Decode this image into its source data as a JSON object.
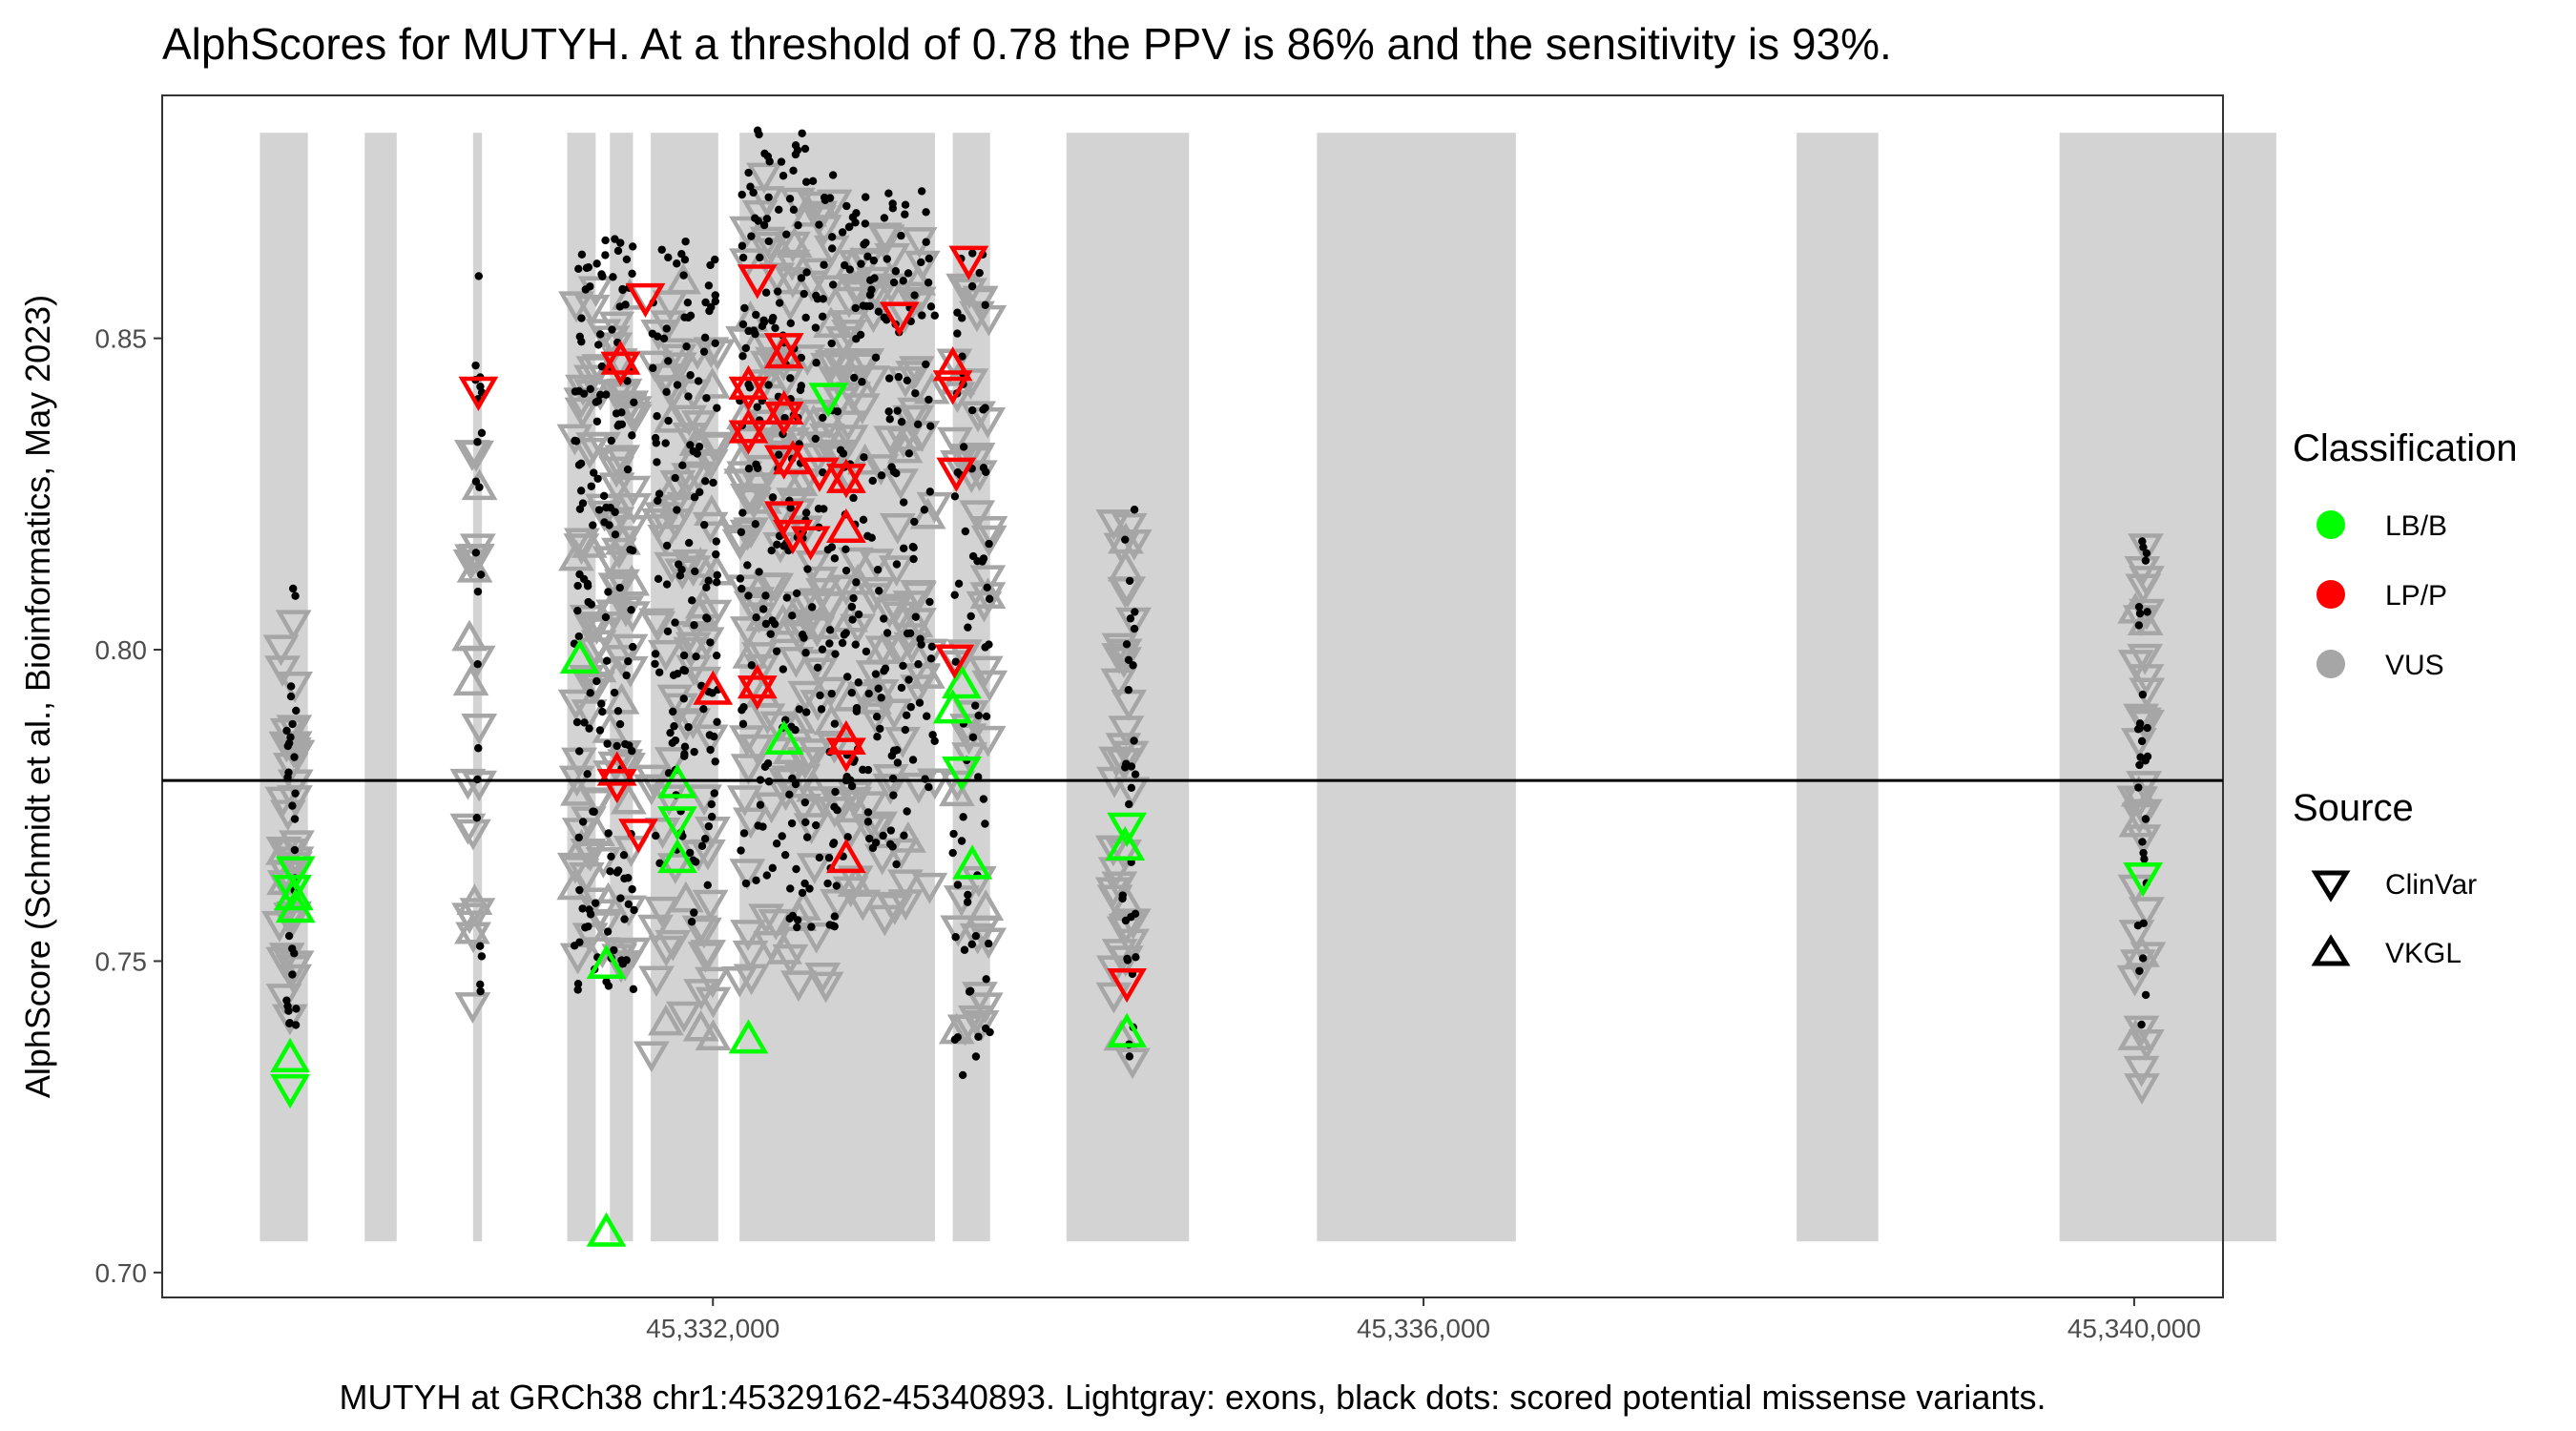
{
  "chart_data": {
    "type": "scatter",
    "title": "AlphScores for MUTYH. At a threshold of 0.78 the PPV is 86% and the sensitivity is 93%.",
    "xlabel": "MUTYH at GRCh38 chr1:45329162-45340893. Lightgray: exons, black dots: scored potential missense variants.",
    "ylabel": "AlphScore (Schmidt et al.,  Bioinformatics, May 2023)",
    "xlim": [
      28900,
      40500
    ],
    "ylim": [
      0.696,
      0.889
    ],
    "x_ticks": [
      {
        "value": 32000,
        "label": "45,332,000"
      },
      {
        "value": 36000,
        "label": "45,336,000"
      },
      {
        "value": 40000,
        "label": "45,340,000"
      }
    ],
    "y_ticks": [
      {
        "value": 0.7,
        "label": "0.70"
      },
      {
        "value": 0.75,
        "label": "0.75"
      },
      {
        "value": 0.8,
        "label": "0.80"
      },
      {
        "value": 0.85,
        "label": "0.85"
      }
    ],
    "threshold": 0.779,
    "grid": false,
    "exons": [
      [
        29450,
        29720
      ],
      [
        30040,
        30220
      ],
      [
        30650,
        30700
      ],
      [
        31180,
        31340
      ],
      [
        31420,
        31550
      ],
      [
        31650,
        32030
      ],
      [
        32150,
        33250
      ],
      [
        33350,
        33560
      ],
      [
        33990,
        34680
      ],
      [
        35400,
        36520
      ],
      [
        38100,
        38560
      ],
      [
        39580,
        40800
      ]
    ],
    "missense_clusters": [
      {
        "x": [
          29600,
          29660
        ],
        "y": [
          0.732,
          0.82
        ],
        "n": 30
      },
      {
        "x": [
          30660,
          30700
        ],
        "y": [
          0.742,
          0.861
        ],
        "n": 22
      },
      {
        "x": [
          31220,
          31560
        ],
        "y": [
          0.745,
          0.866
        ],
        "n": 150
      },
      {
        "x": [
          31650,
          32030
        ],
        "y": [
          0.756,
          0.866
        ],
        "n": 130
      },
      {
        "x": [
          32150,
          32700
        ],
        "y": [
          0.755,
          0.884
        ],
        "n": 220
      },
      {
        "x": [
          32700,
          33250
        ],
        "y": [
          0.765,
          0.874
        ],
        "n": 180
      },
      {
        "x": [
          33350,
          33560
        ],
        "y": [
          0.731,
          0.864
        ],
        "n": 70
      },
      {
        "x": [
          34300,
          34380
        ],
        "y": [
          0.732,
          0.823
        ],
        "n": 30
      },
      {
        "x": [
          40020,
          40080
        ],
        "y": [
          0.727,
          0.819
        ],
        "n": 30
      }
    ],
    "vus_clusters": [
      {
        "x": [
          29560,
          29660
        ],
        "y": [
          0.733,
          0.805
        ],
        "n": 36
      },
      {
        "x": [
          30620,
          30700
        ],
        "y": [
          0.742,
          0.845
        ],
        "n": 22
      },
      {
        "x": [
          31220,
          31560
        ],
        "y": [
          0.747,
          0.86
        ],
        "n": 110
      },
      {
        "x": [
          31650,
          32030
        ],
        "y": [
          0.735,
          0.86
        ],
        "n": 90
      },
      {
        "x": [
          32150,
          32700
        ],
        "y": [
          0.745,
          0.877
        ],
        "n": 150
      },
      {
        "x": [
          32700,
          33250
        ],
        "y": [
          0.757,
          0.868
        ],
        "n": 120
      },
      {
        "x": [
          33350,
          33560
        ],
        "y": [
          0.738,
          0.862
        ],
        "n": 50
      },
      {
        "x": [
          34250,
          34380
        ],
        "y": [
          0.732,
          0.822
        ],
        "n": 40
      },
      {
        "x": [
          40000,
          40080
        ],
        "y": [
          0.728,
          0.818
        ],
        "n": 36
      }
    ],
    "series": [
      {
        "name": "LB/B",
        "color": "#00ff00",
        "points": [
          [
            29620,
            0.73,
            "ClinVar"
          ],
          [
            29620,
            0.734,
            "VKGL"
          ],
          [
            29640,
            0.76,
            "VKGL"
          ],
          [
            29650,
            0.765,
            "ClinVar"
          ],
          [
            29650,
            0.758,
            "VKGL"
          ],
          [
            29630,
            0.762,
            "ClinVar"
          ],
          [
            31250,
            0.798,
            "VKGL"
          ],
          [
            31400,
            0.749,
            "VKGL"
          ],
          [
            31400,
            0.706,
            "VKGL"
          ],
          [
            31800,
            0.773,
            "ClinVar"
          ],
          [
            31800,
            0.778,
            "VKGL"
          ],
          [
            31800,
            0.766,
            "VKGL"
          ],
          [
            32200,
            0.737,
            "VKGL"
          ],
          [
            32400,
            0.785,
            "VKGL"
          ],
          [
            32650,
            0.841,
            "ClinVar"
          ],
          [
            33350,
            0.79,
            "VKGL"
          ],
          [
            33400,
            0.794,
            "VKGL"
          ],
          [
            33400,
            0.781,
            "ClinVar"
          ],
          [
            33460,
            0.765,
            "VKGL"
          ],
          [
            34330,
            0.772,
            "ClinVar"
          ],
          [
            34320,
            0.768,
            "VKGL"
          ],
          [
            34330,
            0.738,
            "VKGL"
          ],
          [
            40050,
            0.764,
            "ClinVar"
          ]
        ]
      },
      {
        "name": "LP/P",
        "color": "#ff0000",
        "points": [
          [
            30680,
            0.842,
            "ClinVar"
          ],
          [
            31480,
            0.846,
            "ClinVar"
          ],
          [
            31480,
            0.846,
            "VKGL"
          ],
          [
            31460,
            0.78,
            "VKGL"
          ],
          [
            31460,
            0.779,
            "ClinVar"
          ],
          [
            31620,
            0.857,
            "ClinVar"
          ],
          [
            31580,
            0.771,
            "ClinVar"
          ],
          [
            32000,
            0.793,
            "VKGL"
          ],
          [
            32200,
            0.842,
            "VKGL"
          ],
          [
            32200,
            0.842,
            "ClinVar"
          ],
          [
            32250,
            0.86,
            "ClinVar"
          ],
          [
            32200,
            0.835,
            "ClinVar"
          ],
          [
            32200,
            0.835,
            "VKGL"
          ],
          [
            32250,
            0.794,
            "VKGL"
          ],
          [
            32250,
            0.794,
            "ClinVar"
          ],
          [
            32400,
            0.849,
            "ClinVar"
          ],
          [
            32400,
            0.847,
            "VKGL"
          ],
          [
            32400,
            0.838,
            "VKGL"
          ],
          [
            32400,
            0.838,
            "ClinVar"
          ],
          [
            32400,
            0.831,
            "ClinVar"
          ],
          [
            32450,
            0.83,
            "VKGL"
          ],
          [
            32400,
            0.822,
            "ClinVar"
          ],
          [
            32450,
            0.819,
            "ClinVar"
          ],
          [
            32550,
            0.818,
            "ClinVar"
          ],
          [
            32600,
            0.829,
            "ClinVar"
          ],
          [
            32750,
            0.828,
            "ClinVar"
          ],
          [
            32750,
            0.827,
            "VKGL"
          ],
          [
            32750,
            0.819,
            "VKGL"
          ],
          [
            32750,
            0.784,
            "ClinVar"
          ],
          [
            32750,
            0.785,
            "VKGL"
          ],
          [
            32750,
            0.766,
            "VKGL"
          ],
          [
            33050,
            0.854,
            "ClinVar"
          ],
          [
            33350,
            0.843,
            "ClinVar"
          ],
          [
            33350,
            0.845,
            "VKGL"
          ],
          [
            33370,
            0.829,
            "ClinVar"
          ],
          [
            33360,
            0.799,
            "ClinVar"
          ],
          [
            33440,
            0.863,
            "ClinVar"
          ],
          [
            34330,
            0.747,
            "ClinVar"
          ]
        ]
      }
    ],
    "legend": {
      "placement": "right",
      "classification": {
        "title": "Classification",
        "items": [
          {
            "label": "LB/B",
            "color": "#00ff00"
          },
          {
            "label": "LP/P",
            "color": "#ff0000"
          },
          {
            "label": "VUS",
            "color": "#a6a6a6"
          }
        ]
      },
      "source": {
        "title": "Source",
        "items": [
          {
            "label": "ClinVar",
            "shape": "triangle-down"
          },
          {
            "label": "VKGL",
            "shape": "triangle-up"
          }
        ]
      }
    }
  }
}
